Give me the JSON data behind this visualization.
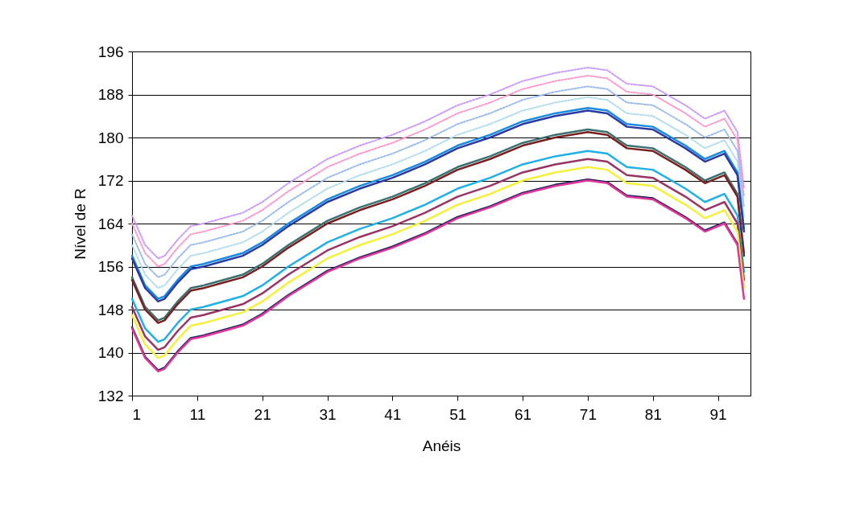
{
  "chart_data": {
    "type": "line",
    "xlabel": "Anéis",
    "ylabel": "Nível de R",
    "x": [
      1,
      3,
      5,
      6,
      8,
      10,
      12,
      15,
      18,
      21,
      25,
      31,
      36,
      41,
      46,
      51,
      56,
      61,
      66,
      71,
      74,
      77,
      81,
      86,
      89,
      92,
      94,
      95
    ],
    "xlim": [
      1,
      96
    ],
    "xticks": [
      1,
      11,
      21,
      31,
      41,
      51,
      61,
      71,
      81,
      91
    ],
    "ylim": [
      132,
      196
    ],
    "yticks": [
      132,
      140,
      148,
      156,
      164,
      172,
      180,
      188,
      196
    ],
    "grid": "y",
    "marker": "none",
    "series": [
      {
        "color": "#cc99ff",
        "line_style": "dotted",
        "values": [
          165.5,
          160,
          157.5,
          158,
          161,
          163.5,
          164,
          165,
          166,
          168,
          171.5,
          176,
          178.5,
          180.5,
          183,
          186,
          188,
          190.5,
          192,
          193,
          192.5,
          190,
          189.5,
          186,
          183.5,
          185,
          181,
          170.5
        ]
      },
      {
        "color": "#ff99cc",
        "line_style": "dotted",
        "values": [
          164,
          158.5,
          156,
          156.5,
          159.5,
          162,
          162.5,
          163.5,
          164.5,
          166.5,
          170,
          174.5,
          177,
          179,
          181.5,
          184.5,
          186.5,
          189,
          190.5,
          191.5,
          191,
          188.5,
          188,
          184.5,
          182,
          183.5,
          179.5,
          169
        ]
      },
      {
        "color": "#99bbee",
        "line_style": "dotted",
        "values": [
          162,
          156.5,
          154,
          154.5,
          157.5,
          160,
          160.5,
          161.5,
          162.5,
          164.5,
          168,
          172.5,
          175,
          177,
          179.5,
          182.5,
          184.5,
          187,
          188.5,
          189.5,
          189,
          186.5,
          186,
          182.5,
          180,
          181.5,
          177.5,
          167
        ]
      },
      {
        "color": "#b0dcef",
        "line_style": "dotted",
        "values": [
          160,
          154.5,
          152,
          152.5,
          155.5,
          158,
          158.5,
          159.5,
          160.5,
          162.5,
          166,
          170.5,
          173,
          175,
          177.5,
          180.5,
          182.5,
          185,
          186.5,
          187.5,
          187,
          184.5,
          184,
          180.5,
          178,
          179.5,
          175.5,
          165
        ]
      },
      {
        "color": "#1a8ae0",
        "line_style": "solid",
        "values": [
          158,
          152.5,
          150,
          150.5,
          153.5,
          156,
          156.5,
          157.5,
          158.5,
          160.5,
          164,
          168.5,
          171,
          173,
          175.5,
          178.5,
          180.5,
          183,
          184.5,
          185.5,
          185,
          182.5,
          182,
          178.5,
          176,
          177.5,
          173.5,
          163
        ]
      },
      {
        "color": "#2a3aa0",
        "line_style": "solid",
        "values": [
          157.5,
          152,
          149.5,
          150,
          153,
          155.5,
          156,
          157,
          158,
          160,
          163.5,
          168,
          170.5,
          172.5,
          175,
          178,
          180,
          182.5,
          184,
          185,
          184.5,
          182,
          181.5,
          178,
          175.5,
          177,
          173,
          162.5
        ]
      },
      {
        "color": "#3a7070",
        "line_style": "solid",
        "values": [
          154,
          148.5,
          146,
          146.5,
          149.5,
          152,
          152.5,
          153.5,
          154.5,
          156.5,
          160,
          164.5,
          167,
          169,
          171.5,
          174.5,
          176.5,
          179,
          180.5,
          181.5,
          181,
          178.5,
          178,
          174.5,
          172,
          173.5,
          169.5,
          158.5
        ]
      },
      {
        "color": "#7a1f1f",
        "line_style": "solid",
        "values": [
          153.5,
          148,
          145.5,
          146,
          149,
          151.5,
          152,
          153,
          154,
          156,
          159.5,
          164,
          166.5,
          168.5,
          171,
          174,
          176,
          178.5,
          180,
          181,
          180.5,
          178,
          177.5,
          174,
          171.5,
          173,
          169,
          158
        ]
      },
      {
        "color": "#1fb0e8",
        "line_style": "solid",
        "values": [
          150,
          144.5,
          142,
          142.5,
          145.5,
          148,
          148.5,
          149.5,
          150.5,
          152.5,
          156,
          160.5,
          163,
          165,
          167.5,
          170.5,
          172.5,
          175,
          176.5,
          177.5,
          177,
          174.5,
          174,
          170.5,
          168,
          169.5,
          165.5,
          155
        ]
      },
      {
        "color": "#993366",
        "line_style": "solid",
        "values": [
          148.5,
          143,
          140.5,
          141,
          144,
          146.5,
          147,
          148,
          149,
          151,
          154.5,
          159,
          161.5,
          163.5,
          166,
          169,
          171,
          173.5,
          175,
          176,
          175.5,
          173,
          172.5,
          169,
          166.5,
          168,
          164,
          153.5
        ]
      },
      {
        "color": "#f5f03a",
        "line_style": "solid",
        "values": [
          147,
          141.5,
          139,
          139.5,
          142.5,
          145,
          145.5,
          146.5,
          147.5,
          149.5,
          153,
          157.5,
          160,
          162,
          164.5,
          167.5,
          169.5,
          172,
          173.5,
          174.5,
          174,
          171.5,
          171,
          167.5,
          165,
          166.5,
          162.5,
          152
        ]
      },
      {
        "color": "#1f1f5c",
        "line_style": "solid",
        "values": [
          144.7,
          139.2,
          136.7,
          137.2,
          140.2,
          142.7,
          143.2,
          144.2,
          145.2,
          147.2,
          150.7,
          155.2,
          157.7,
          159.7,
          162.2,
          165.2,
          167.2,
          169.7,
          171.2,
          172.2,
          171.7,
          169.2,
          168.7,
          165.2,
          162.7,
          164.2,
          160.2,
          null
        ]
      },
      {
        "color": "#e0389a",
        "line_style": "solid",
        "values": [
          144.5,
          139,
          136.5,
          137,
          140,
          142.5,
          143,
          144,
          145,
          147,
          150.5,
          155,
          157.5,
          159.5,
          162,
          165,
          167,
          169.5,
          171,
          172,
          171.5,
          169,
          168.5,
          165,
          162.5,
          164,
          160,
          150
        ]
      }
    ]
  }
}
